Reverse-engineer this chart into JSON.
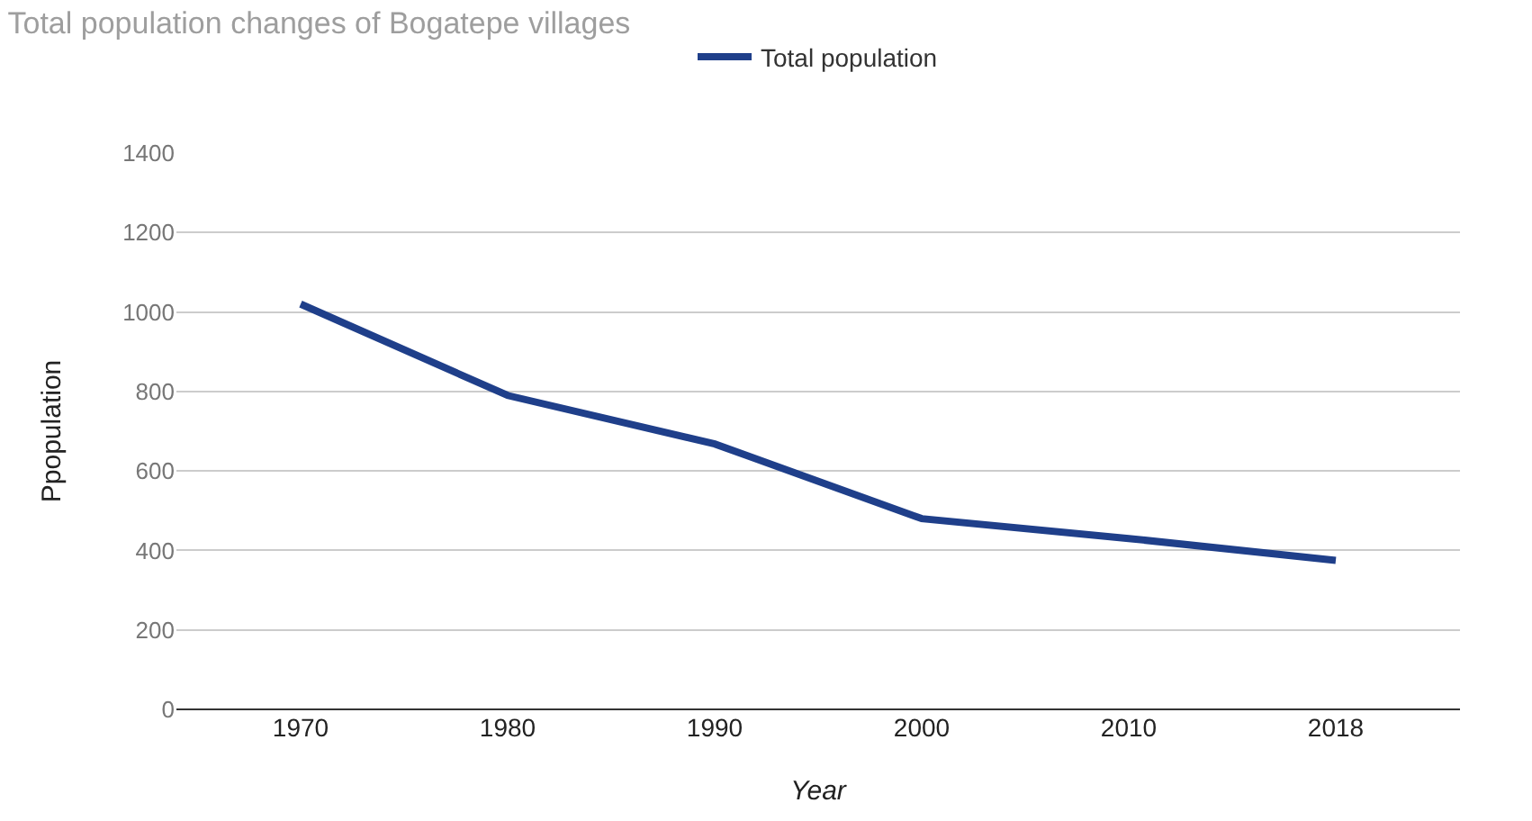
{
  "chart_data": {
    "type": "line",
    "title": "Total population changes of Bogatepe villages",
    "xlabel": "Year",
    "ylabel": "Ppopulation",
    "categories": [
      "1970",
      "1980",
      "1990",
      "2000",
      "2010",
      "2018"
    ],
    "series": [
      {
        "name": "Total population",
        "color": "#1f3f8a",
        "values": [
          1020,
          790,
          668,
          480,
          430,
          375
        ]
      }
    ],
    "ylim": [
      0,
      1400
    ],
    "yticks": [
      0,
      200,
      400,
      600,
      800,
      1000,
      1200,
      1400
    ],
    "grid": "y",
    "legend": "top",
    "marker": "none",
    "line_style": "solid"
  }
}
